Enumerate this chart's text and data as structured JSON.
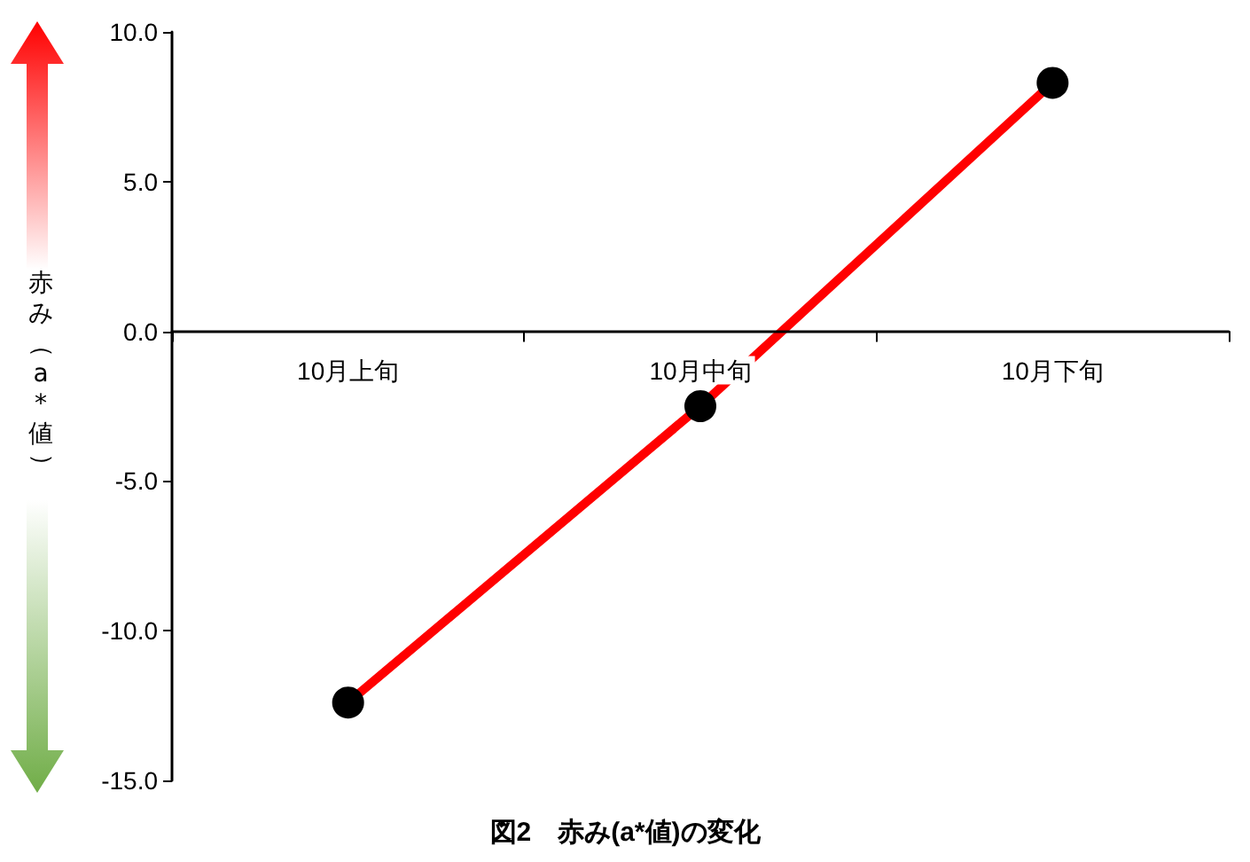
{
  "chart_data": {
    "type": "line",
    "title": "図2　赤み(a*値)の変化",
    "ylabel": "赤み（a*値）",
    "categories": [
      "10月上旬",
      "10月中旬",
      "10月下旬"
    ],
    "series": [
      {
        "color": "#ff0000",
        "values": [
          -12.4,
          -2.5,
          8.3
        ]
      }
    ],
    "ylim": [
      -15,
      10
    ],
    "yticks": [
      {
        "value": -15,
        "label": "-15.0"
      },
      {
        "value": -10,
        "label": "-10.0"
      },
      {
        "value": -5,
        "label": "-5.0"
      },
      {
        "value": 0,
        "label": "0.0"
      },
      {
        "value": 5,
        "label": "5.0"
      },
      {
        "value": 10,
        "label": "10.0"
      }
    ],
    "grid": false,
    "marker": "circle",
    "line_style": "solid"
  }
}
